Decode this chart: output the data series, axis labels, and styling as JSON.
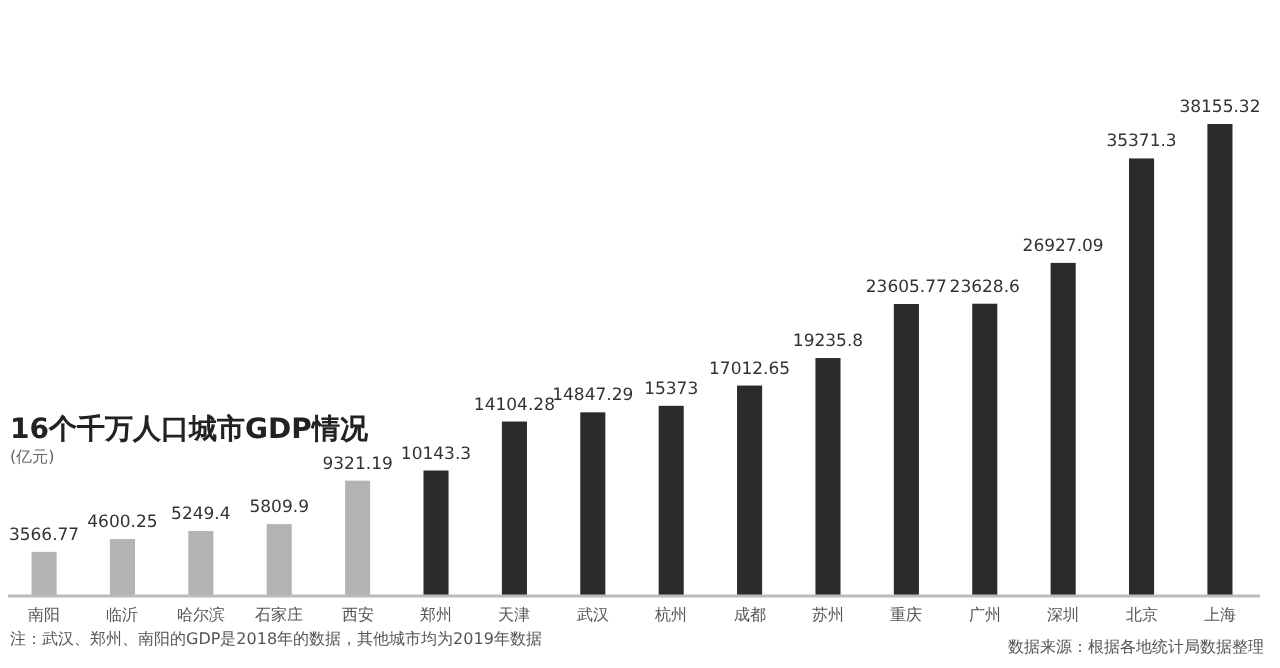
{
  "chart_data": {
    "type": "bar",
    "title": "16个千万人口城市GDP情况",
    "ylabel": "(亿元)",
    "categories": [
      "南阳",
      "临沂",
      "哈尔滨",
      "石家庄",
      "西安",
      "郑州",
      "天津",
      "武汉",
      "杭州",
      "成都",
      "苏州",
      "重庆",
      "广州",
      "深圳",
      "北京",
      "上海"
    ],
    "values": [
      3566.77,
      4600.25,
      5249.4,
      5809.9,
      9321.19,
      10143.3,
      14104.28,
      14847.29,
      15373,
      17012.65,
      19235.8,
      23605.77,
      23628.6,
      26927.09,
      35371.3,
      38155.32
    ],
    "colors": [
      "#b3b3b3",
      "#b3b3b3",
      "#b3b3b3",
      "#b3b3b3",
      "#b3b3b3",
      "#2b2b2b",
      "#2b2b2b",
      "#2b2b2b",
      "#2b2b2b",
      "#2b2b2b",
      "#2b2b2b",
      "#2b2b2b",
      "#2b2b2b",
      "#2b2b2b",
      "#2b2b2b",
      "#2b2b2b"
    ],
    "data_labels": true,
    "annotations": [
      "注：武汉、郑州、南阳的GDP是2018年的数据，其他城市均为2019年数据",
      "数据来源：根据各地统计局数据整理"
    ]
  }
}
